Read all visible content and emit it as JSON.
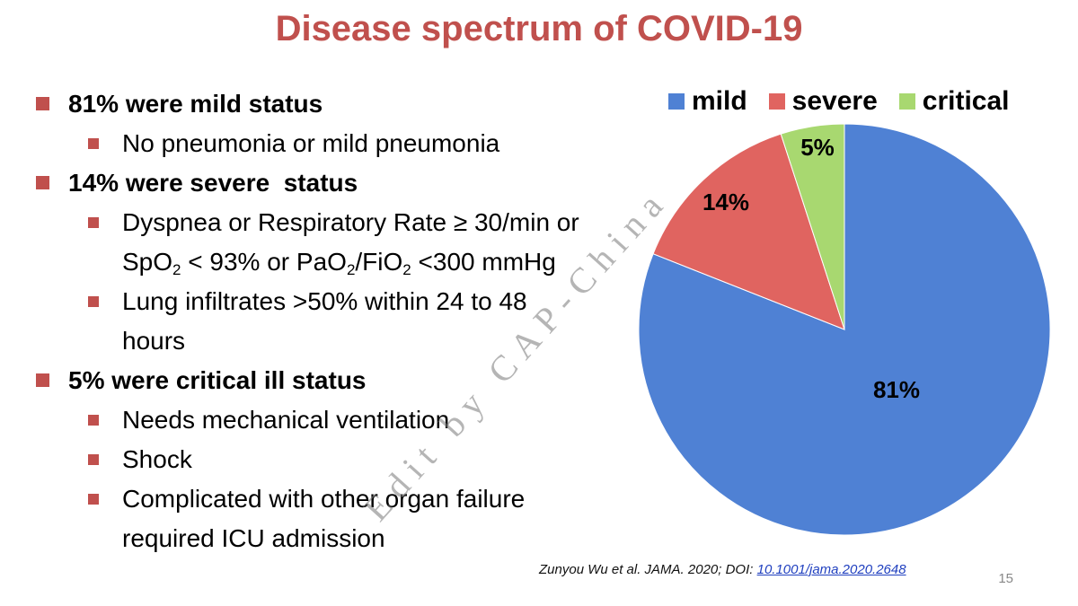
{
  "slide": {
    "title": "Disease spectrum of COVID-19",
    "bullets": {
      "mild_head": "81% were mild status",
      "mild_sub1": "No pneumonia or mild pneumonia",
      "severe_head": "14% were severe  status",
      "severe_sub1": {
        "a": "Dyspnea or Respiratory Rate ≥ 30/min or",
        "b1": "SpO",
        "s1": "2",
        "b2": " < 93% or PaO",
        "s2": "2",
        "b3": "/FiO",
        "s3": "2",
        "b4": " <300 mmHg"
      },
      "severe_sub2": {
        "a": "Lung infiltrates >50% within 24 to 48",
        "b": "hours"
      },
      "critical_head": "5% were critical ill status",
      "critical_sub1": "Needs mechanical ventilation",
      "critical_sub2": "Shock",
      "critical_sub3": {
        "a": "Complicated with other organ failure",
        "b": "required ICU admission"
      }
    },
    "watermark": "Edit by CAP-China",
    "citation": {
      "text": "Zunyou Wu et al. JAMA. 2020; DOI: ",
      "doi": "10.1001/jama.2020.2648"
    },
    "page_number": "15"
  },
  "chart_data": {
    "type": "pie",
    "categories": [
      "mild",
      "severe",
      "critical"
    ],
    "values": [
      81,
      14,
      5
    ],
    "labels": [
      "81%",
      "14%",
      "5%"
    ],
    "colors": [
      "#4f81d4",
      "#e06460",
      "#a8d870"
    ],
    "legend_position": "top"
  }
}
